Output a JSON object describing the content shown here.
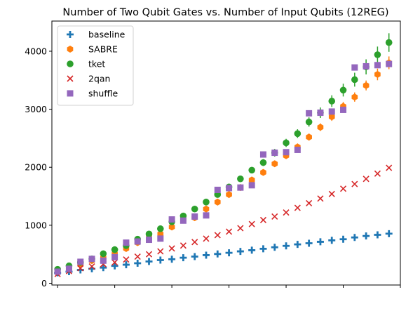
{
  "chart_data": {
    "type": "scatter",
    "title": "Number of Two Qubit Gates vs. Number of Input Qubits (12REG)",
    "xlabel": "",
    "ylabel": "",
    "xlim": [
      5,
      66
    ],
    "ylim": [
      -30,
      4520
    ],
    "x_ticks": [
      6,
      16,
      26,
      36,
      46,
      56,
      66
    ],
    "y_ticks": [
      0,
      1000,
      2000,
      3000,
      4000
    ],
    "y_tick_labels": [
      "0",
      "1000",
      "2000",
      "3000",
      "4000"
    ],
    "legend_position": "upper-left",
    "grid": false,
    "x": [
      6,
      8,
      10,
      12,
      14,
      16,
      18,
      20,
      22,
      24,
      26,
      28,
      30,
      32,
      34,
      36,
      38,
      40,
      42,
      44,
      46,
      48,
      50,
      52,
      54,
      56,
      58,
      60,
      62,
      64
    ],
    "series": [
      {
        "name": "baseline",
        "marker": "plus",
        "color": "#1f77b4",
        "values": [
          180,
          200,
          230,
          250,
          270,
          300,
          320,
          345,
          375,
          400,
          415,
          440,
          460,
          485,
          505,
          525,
          550,
          570,
          595,
          620,
          645,
          670,
          690,
          715,
          740,
          760,
          790,
          815,
          835,
          855
        ],
        "errors": [
          0,
          0,
          0,
          0,
          0,
          0,
          0,
          0,
          0,
          0,
          0,
          0,
          0,
          0,
          0,
          0,
          0,
          0,
          0,
          0,
          0,
          0,
          0,
          0,
          0,
          0,
          0,
          0,
          0,
          0
        ]
      },
      {
        "name": "SABRE",
        "marker": "hexagon",
        "color": "#ff7f0e",
        "values": [
          200,
          250,
          320,
          390,
          440,
          510,
          600,
          700,
          840,
          850,
          970,
          1100,
          1130,
          1280,
          1400,
          1530,
          1650,
          1780,
          1910,
          2060,
          2200,
          2350,
          2520,
          2690,
          2870,
          3050,
          3210,
          3410,
          3600,
          3800
        ],
        "errors": [
          0,
          0,
          0,
          0,
          0,
          0,
          0,
          0,
          0,
          0,
          30,
          30,
          35,
          35,
          40,
          40,
          45,
          45,
          50,
          55,
          55,
          60,
          60,
          65,
          70,
          75,
          80,
          85,
          100,
          110
        ]
      },
      {
        "name": "tket",
        "marker": "circle",
        "color": "#2ca02c",
        "values": [
          240,
          300,
          360,
          420,
          510,
          580,
          650,
          760,
          850,
          940,
          1060,
          1160,
          1280,
          1400,
          1530,
          1660,
          1800,
          1950,
          2080,
          2250,
          2420,
          2580,
          2780,
          2940,
          3140,
          3330,
          3510,
          3730,
          3940,
          4150
        ],
        "errors": [
          0,
          0,
          0,
          0,
          20,
          20,
          20,
          25,
          25,
          25,
          30,
          30,
          35,
          40,
          40,
          45,
          50,
          55,
          60,
          65,
          70,
          75,
          80,
          90,
          100,
          110,
          120,
          130,
          140,
          160
        ]
      },
      {
        "name": "2qan",
        "marker": "x",
        "color": "#d62728",
        "values": [
          160,
          210,
          260,
          290,
          330,
          360,
          410,
          460,
          500,
          550,
          600,
          650,
          710,
          770,
          830,
          890,
          950,
          1020,
          1090,
          1150,
          1220,
          1300,
          1380,
          1460,
          1540,
          1630,
          1710,
          1800,
          1890,
          1990
        ],
        "errors": [
          0,
          0,
          0,
          0,
          0,
          0,
          0,
          0,
          0,
          0,
          0,
          0,
          0,
          0,
          0,
          0,
          0,
          0,
          0,
          0,
          0,
          0,
          0,
          0,
          0,
          0,
          0,
          0,
          0,
          0
        ]
      },
      {
        "name": "shuffle",
        "marker": "square",
        "color": "#9467bd",
        "values": [
          200,
          250,
          370,
          420,
          390,
          450,
          700,
          720,
          750,
          770,
          1100,
          1080,
          1150,
          1170,
          1610,
          1640,
          1650,
          1690,
          2220,
          2250,
          2260,
          2300,
          2930,
          2940,
          2960,
          2990,
          3720,
          3740,
          3760,
          3780
        ],
        "errors": [
          0,
          0,
          0,
          0,
          0,
          0,
          0,
          0,
          0,
          0,
          0,
          0,
          0,
          0,
          0,
          0,
          0,
          0,
          0,
          0,
          0,
          0,
          0,
          0,
          0,
          0,
          0,
          0,
          0,
          0
        ]
      }
    ]
  }
}
